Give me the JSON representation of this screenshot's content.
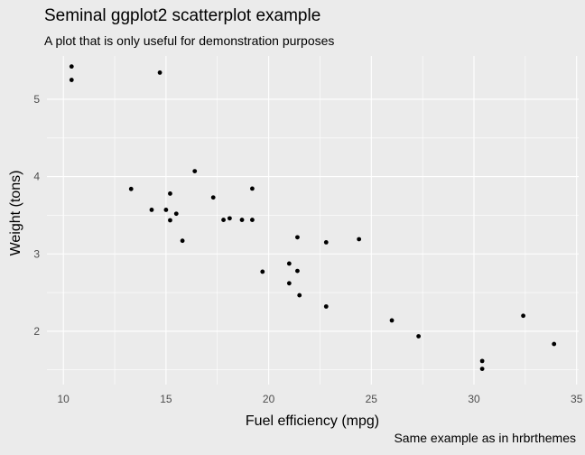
{
  "chart_data": {
    "type": "scatter",
    "title": "Seminal ggplot2 scatterplot example",
    "subtitle": "A plot that is only useful for demonstration purposes",
    "caption": "Same example as in hrbrthemes",
    "xlabel": "Fuel efficiency (mpg)",
    "ylabel": "Weight (tons)",
    "xlim": [
      9.2,
      35.1
    ],
    "ylim": [
      1.31,
      5.56
    ],
    "xticks": [
      10,
      15,
      20,
      25,
      30,
      35
    ],
    "yticks": [
      2,
      3,
      4,
      5
    ],
    "grid": true,
    "colors": {
      "background": "#ebebeb",
      "grid": "#ffffff",
      "point": "#000000"
    },
    "points": [
      {
        "x": 21.0,
        "y": 2.62
      },
      {
        "x": 21.0,
        "y": 2.875
      },
      {
        "x": 22.8,
        "y": 2.32
      },
      {
        "x": 21.4,
        "y": 3.215
      },
      {
        "x": 18.7,
        "y": 3.44
      },
      {
        "x": 18.1,
        "y": 3.46
      },
      {
        "x": 14.3,
        "y": 3.57
      },
      {
        "x": 24.4,
        "y": 3.19
      },
      {
        "x": 22.8,
        "y": 3.15
      },
      {
        "x": 19.2,
        "y": 3.44
      },
      {
        "x": 17.8,
        "y": 3.44
      },
      {
        "x": 16.4,
        "y": 4.07
      },
      {
        "x": 17.3,
        "y": 3.73
      },
      {
        "x": 15.2,
        "y": 3.78
      },
      {
        "x": 10.4,
        "y": 5.25
      },
      {
        "x": 10.4,
        "y": 5.424
      },
      {
        "x": 14.7,
        "y": 5.345
      },
      {
        "x": 32.4,
        "y": 2.2
      },
      {
        "x": 30.4,
        "y": 1.615
      },
      {
        "x": 33.9,
        "y": 1.835
      },
      {
        "x": 21.5,
        "y": 2.465
      },
      {
        "x": 15.5,
        "y": 3.52
      },
      {
        "x": 15.2,
        "y": 3.435
      },
      {
        "x": 13.3,
        "y": 3.84
      },
      {
        "x": 19.2,
        "y": 3.845
      },
      {
        "x": 27.3,
        "y": 1.935
      },
      {
        "x": 26.0,
        "y": 2.14
      },
      {
        "x": 30.4,
        "y": 1.513
      },
      {
        "x": 15.8,
        "y": 3.17
      },
      {
        "x": 19.7,
        "y": 2.77
      },
      {
        "x": 15.0,
        "y": 3.57
      },
      {
        "x": 21.4,
        "y": 2.78
      }
    ]
  }
}
